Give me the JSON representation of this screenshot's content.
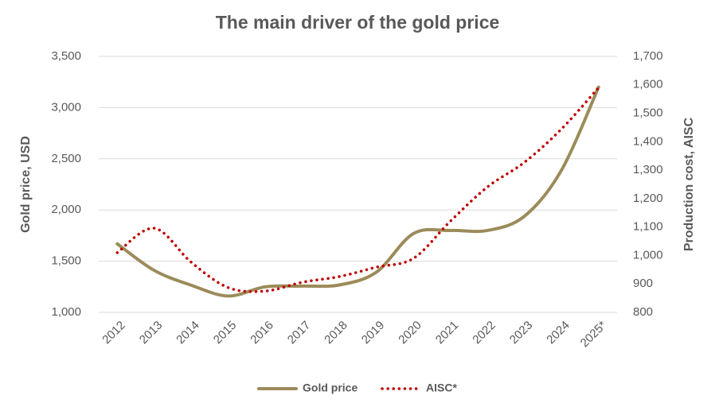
{
  "chart_data": {
    "type": "line",
    "title": "The main driver of the gold price",
    "y_label": "Gold price, USD",
    "y2_label": "Production cost, AISC",
    "categories": [
      "2012",
      "2013",
      "2014",
      "2015",
      "2016",
      "2017",
      "2018",
      "2019",
      "2020",
      "2021",
      "2022",
      "2023",
      "2024",
      "2025*"
    ],
    "series": [
      {
        "name": "Gold price",
        "color": "#9c8b5a",
        "style": "solid",
        "values": [
          1670,
          1410,
          1265,
          1160,
          1250,
          1257,
          1268,
          1393,
          1770,
          1800,
          1800,
          1940,
          2390,
          3200
        ]
      },
      {
        "name": "AISC*",
        "color": "#c00000",
        "style": "dotted",
        "axis": "y2",
        "values": [
          1010,
          1096,
          976,
          887,
          875,
          906,
          926,
          959,
          990,
          1121,
          1241,
          1328,
          1445,
          1590
        ]
      }
    ],
    "ylim": [
      1000,
      3500
    ],
    "yticks": [
      {
        "value": 1000,
        "label": "1,000"
      },
      {
        "value": 1500,
        "label": "1,500"
      },
      {
        "value": 2000,
        "label": "2,000"
      },
      {
        "value": 2500,
        "label": "2,500"
      },
      {
        "value": 3000,
        "label": "3,000"
      },
      {
        "value": 3500,
        "label": "3,500"
      }
    ],
    "y2lim": [
      800,
      1700
    ],
    "y2ticks": [
      800,
      900,
      {
        "value": 1000,
        "label": "1,000"
      },
      {
        "value": 1100,
        "label": "1,100"
      },
      {
        "value": 1200,
        "label": "1,200"
      },
      {
        "value": 1300,
        "label": "1,300"
      },
      {
        "value": 1400,
        "label": "1,400"
      },
      {
        "value": 1500,
        "label": "1,500"
      },
      {
        "value": 1600,
        "label": "1,600"
      },
      {
        "value": 1700,
        "label": "1,700"
      }
    ],
    "grid": true,
    "legend": "bottom"
  }
}
